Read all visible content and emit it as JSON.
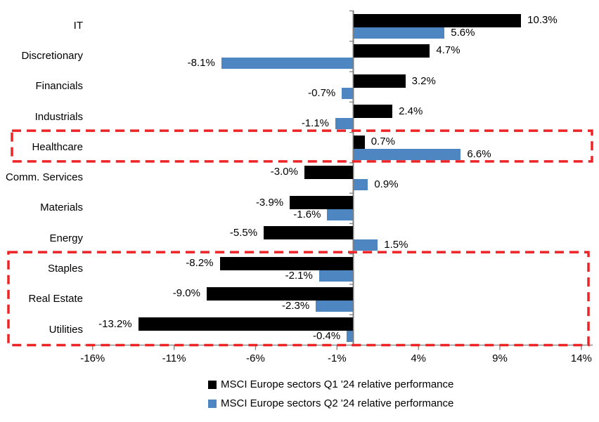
{
  "chart_data": {
    "type": "bar",
    "orientation": "horizontal",
    "title": "",
    "categories": [
      "IT",
      "Discretionary",
      "Financials",
      "Industrials",
      "Healthcare",
      "Comm. Services",
      "Materials",
      "Energy",
      "Staples",
      "Real Estate",
      "Utilities"
    ],
    "series": [
      {
        "name": "MSCI Europe sectors Q1 '24 relative performance",
        "color": "#000000",
        "values": [
          10.3,
          4.7,
          3.2,
          2.4,
          0.7,
          -3.0,
          -3.9,
          -5.5,
          -8.2,
          -9.0,
          -13.2
        ],
        "labels": [
          "10.3%",
          "4.7%",
          "3.2%",
          "2.4%",
          "0.7%",
          "-3.0%",
          "-3.9%",
          "-5.5%",
          "-8.2%",
          "-9.0%",
          "-13.2%"
        ]
      },
      {
        "name": "MSCI Europe sectors Q2 '24 relative performance",
        "color": "#4D86C1",
        "values": [
          5.6,
          -8.1,
          -0.7,
          -1.1,
          6.6,
          0.9,
          -1.6,
          1.5,
          -2.1,
          -2.3,
          -0.4
        ],
        "labels": [
          "5.6%",
          "-8.1%",
          "-0.7%",
          "-1.1%",
          "6.6%",
          "0.9%",
          "-1.6%",
          "1.5%",
          "-2.1%",
          "-2.3%",
          "-0.4%"
        ]
      }
    ],
    "x_axis": {
      "tick_labels": [
        "-16%",
        "-11%",
        "-6%",
        "-1%",
        "4%",
        "9%",
        "14%"
      ],
      "tick_values": [
        -16,
        -11,
        -6,
        -1,
        4,
        9,
        14
      ],
      "range": [
        -16.5,
        14.7
      ],
      "grid": false
    },
    "legend": {
      "position": "bottom"
    },
    "highlights": [
      {
        "categories": [
          "Healthcare"
        ],
        "style": "red-dashed-box"
      },
      {
        "categories": [
          "Staples",
          "Real Estate",
          "Utilities"
        ],
        "style": "red-dashed-box"
      }
    ],
    "highlight_color": "#EE2326",
    "axis_color": "#7F7F7F"
  }
}
